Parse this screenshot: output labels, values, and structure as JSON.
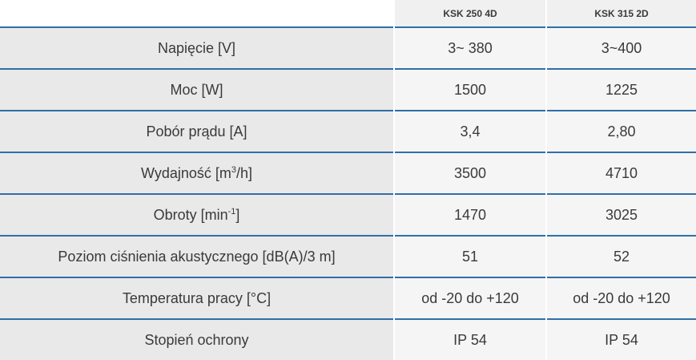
{
  "header": {
    "columns": [
      "KSK 250 4D",
      "KSK 315 2D"
    ]
  },
  "rows": [
    {
      "label": "Napięcie [V]",
      "values": [
        "3~ 380",
        "3~400"
      ]
    },
    {
      "label": "Moc [W]",
      "values": [
        "1500",
        "1225"
      ]
    },
    {
      "label": "Pobór prądu [A]",
      "values": [
        "3,4",
        "2,80"
      ]
    },
    {
      "label": [
        "Wydajność [m",
        "3",
        "/h]"
      ],
      "values": [
        "3500",
        "4710"
      ]
    },
    {
      "label": [
        "Obroty [min",
        "-1",
        "]"
      ],
      "values": [
        "1470",
        "3025"
      ]
    },
    {
      "label": "Poziom ciśnienia akustycznego [dB(A)/3 m]",
      "values": [
        "51",
        "52"
      ]
    },
    {
      "label": "Temperatura pracy [°C]",
      "values": [
        "od -20 do +120",
        "od -20 do +120"
      ]
    },
    {
      "label": "Stopień ochrony",
      "values": [
        "IP 54",
        "IP 54"
      ]
    }
  ]
}
